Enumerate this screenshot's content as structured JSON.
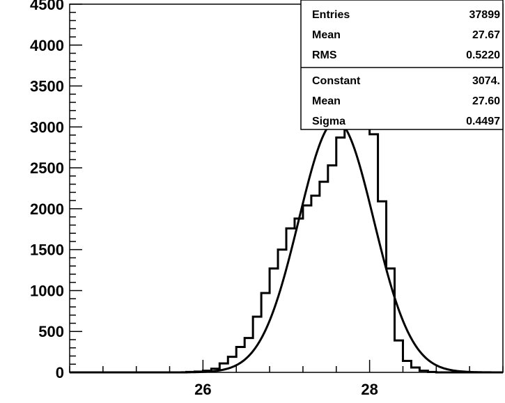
{
  "chart_data": {
    "type": "histogram",
    "xlim": [
      24.4,
      29.6
    ],
    "ylim": [
      0,
      4500
    ],
    "x_ticks": [
      26,
      28
    ],
    "y_ticks": [
      0,
      500,
      1000,
      1500,
      2000,
      2500,
      3000,
      3500,
      4000,
      4500
    ],
    "bins": {
      "edges": [
        24.4,
        24.5,
        24.6,
        24.7,
        24.8,
        24.9,
        25.0,
        25.1,
        25.2,
        25.3,
        25.4,
        25.5,
        25.6,
        25.7,
        25.8,
        25.9,
        26.0,
        26.1,
        26.2,
        26.3,
        26.4,
        26.5,
        26.6,
        26.7,
        26.8,
        26.9,
        27.0,
        27.1,
        27.2,
        27.3,
        27.4,
        27.5,
        27.6,
        27.7,
        27.8,
        27.9,
        28.0,
        28.1,
        28.2,
        28.3,
        28.4,
        28.5,
        28.6,
        28.7,
        28.8,
        28.9,
        29.0,
        29.1,
        29.2,
        29.3,
        29.4,
        29.5,
        29.6
      ],
      "counts": [
        0,
        0,
        0,
        0,
        0,
        0,
        0,
        0,
        0,
        0,
        0,
        0,
        0,
        0,
        5,
        10,
        20,
        45,
        110,
        190,
        310,
        420,
        680,
        970,
        1270,
        1500,
        1760,
        1880,
        2040,
        2160,
        2330,
        2530,
        2870,
        3110,
        3420,
        3360,
        2910,
        2090,
        1270,
        390,
        140,
        60,
        20,
        5,
        0,
        0,
        0,
        0,
        0,
        0,
        0,
        0
      ]
    },
    "fit": {
      "function": "gaus",
      "constant": 3074,
      "mean": 27.6,
      "sigma": 0.4497
    },
    "stats_box": {
      "entries": [
        {
          "label": "Entries",
          "value": "37899"
        },
        {
          "label": "Mean",
          "value": "27.67"
        },
        {
          "label": "RMS",
          "value": "0.5220"
        }
      ],
      "fit_params": [
        {
          "label": "Constant",
          "value": "3074."
        },
        {
          "label": "Mean",
          "value": "27.60"
        },
        {
          "label": "Sigma",
          "value": "0.4497"
        }
      ]
    },
    "title": "",
    "xlabel": "",
    "ylabel": ""
  }
}
